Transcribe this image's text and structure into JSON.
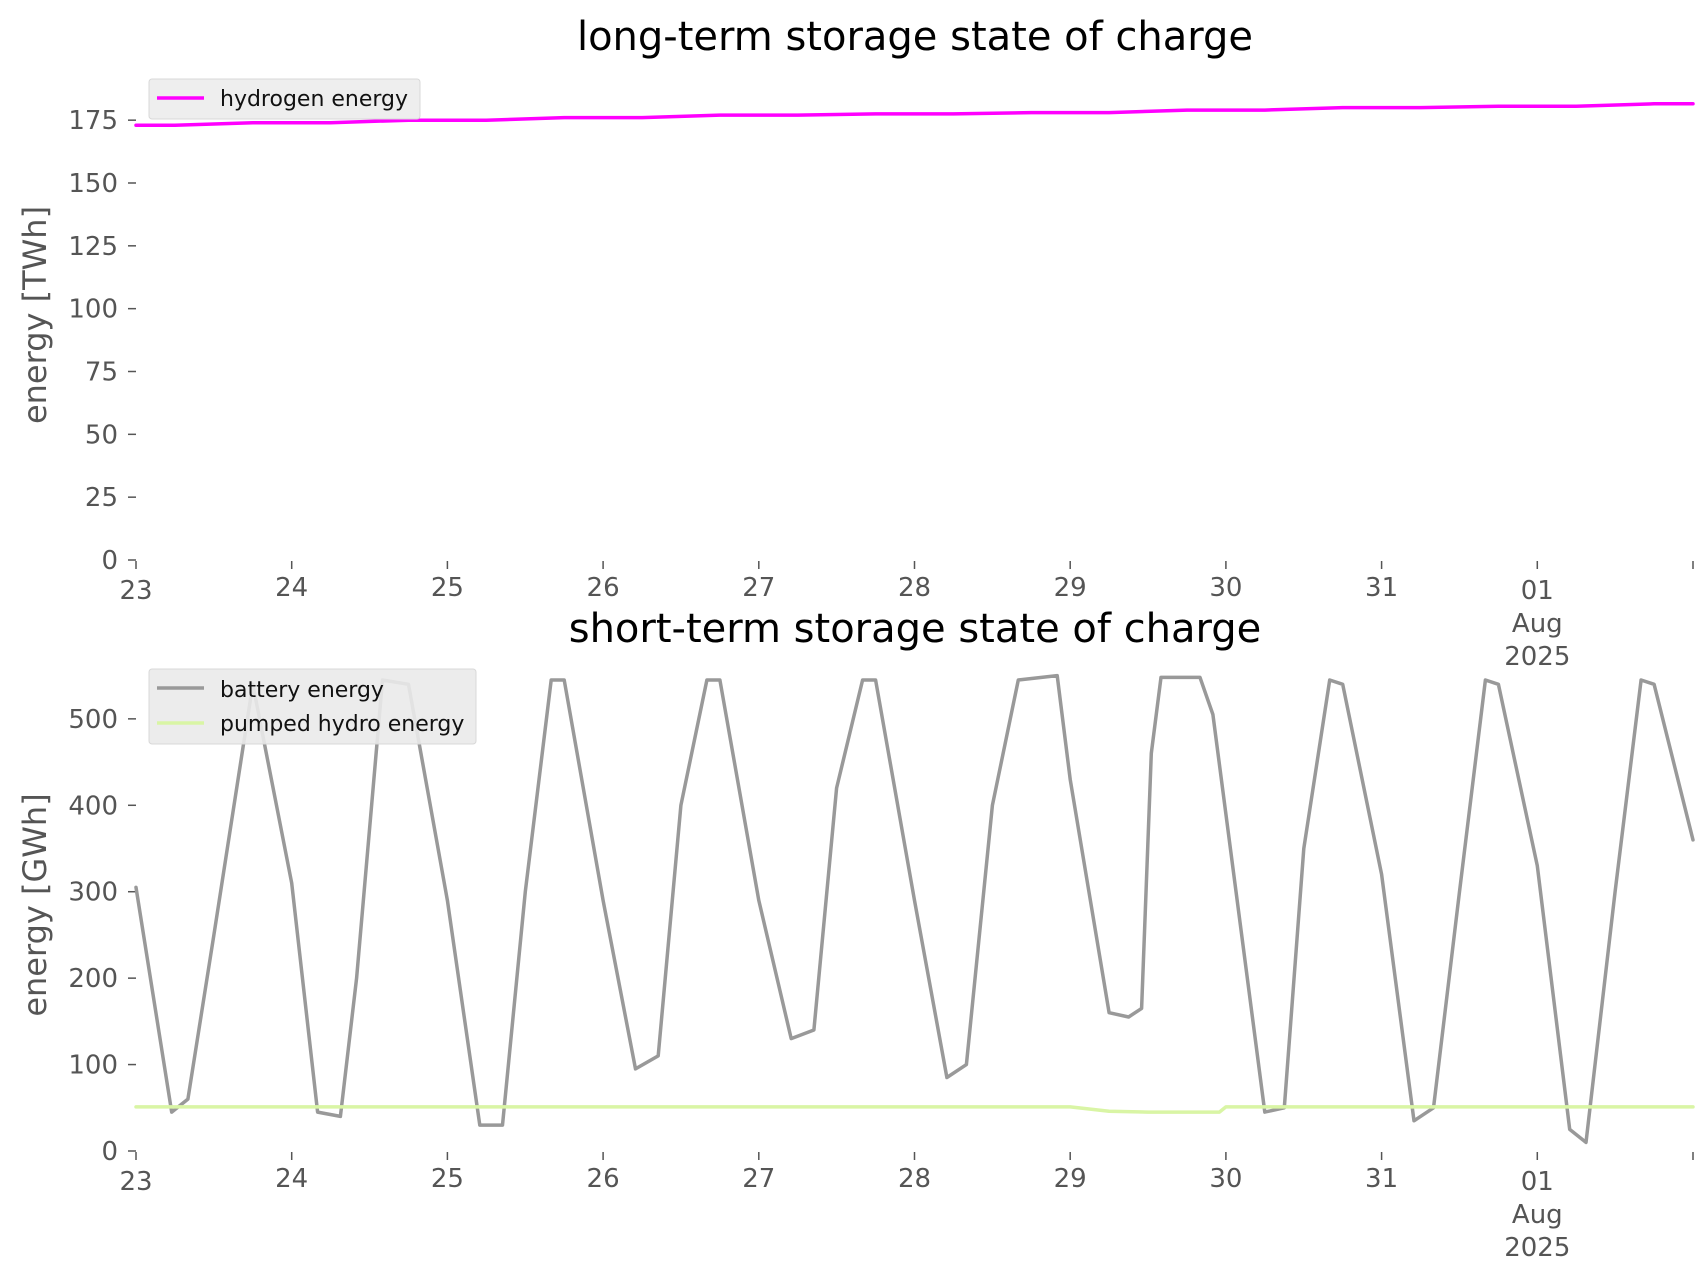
{
  "chart_data": [
    {
      "type": "line",
      "title": "long-term storage state of charge",
      "ylabel": "energy [TWh]",
      "ylim": [
        0,
        187
      ],
      "yticks": [
        "0",
        "25",
        "50",
        "75",
        "100",
        "125",
        "150",
        "175"
      ],
      "xlim": [
        "2025-07-23",
        "2025-08-02"
      ],
      "x_tick_labels": [
        "23",
        "24",
        "25",
        "26",
        "27",
        "28",
        "29",
        "30",
        "31",
        "01"
      ],
      "x_tick_extra": [
        "Aug",
        "2025"
      ],
      "grid": false,
      "legend_position": "top-left",
      "series": [
        {
          "name": "hydrogen energy",
          "color": "#ff00ff",
          "x": [
            "2025-07-23T00:00",
            "2025-07-23T06:00",
            "2025-07-23T18:00",
            "2025-07-24T06:00",
            "2025-07-24T18:00",
            "2025-07-25T06:00",
            "2025-07-25T18:00",
            "2025-07-26T06:00",
            "2025-07-26T18:00",
            "2025-07-27T06:00",
            "2025-07-27T18:00",
            "2025-07-28T06:00",
            "2025-07-28T18:00",
            "2025-07-29T06:00",
            "2025-07-29T18:00",
            "2025-07-30T06:00",
            "2025-07-30T18:00",
            "2025-07-31T06:00",
            "2025-07-31T18:00",
            "2025-08-01T06:00",
            "2025-08-01T18:00",
            "2025-08-02T00:00"
          ],
          "values": [
            173,
            173,
            174,
            174,
            175,
            175,
            176,
            176,
            177,
            177,
            177.5,
            177.5,
            178,
            178,
            179,
            179,
            180,
            180,
            180.5,
            180.5,
            181.5,
            181.5
          ]
        }
      ]
    },
    {
      "type": "line",
      "title": "short-term storage state of charge",
      "ylabel": "energy [GWh]",
      "ylim": [
        0,
        560
      ],
      "yticks": [
        "0",
        "100",
        "200",
        "300",
        "400",
        "500"
      ],
      "xlim": [
        "2025-07-23",
        "2025-08-02"
      ],
      "x_tick_labels": [
        "23",
        "24",
        "25",
        "26",
        "27",
        "28",
        "29",
        "30",
        "31",
        "01"
      ],
      "x_tick_extra": [
        "Aug",
        "2025"
      ],
      "grid": false,
      "legend_position": "top-left",
      "series": [
        {
          "name": "battery energy",
          "color": "#999999",
          "x": [
            "2025-07-23T00:00",
            "2025-07-23T05:30",
            "2025-07-23T08:00",
            "2025-07-23T12:00",
            "2025-07-23T18:00",
            "2025-07-24T00:00",
            "2025-07-24T04:00",
            "2025-07-24T07:30",
            "2025-07-24T10:00",
            "2025-07-24T14:00",
            "2025-07-24T18:00",
            "2025-07-25T00:00",
            "2025-07-25T05:00",
            "2025-07-25T08:30",
            "2025-07-25T12:00",
            "2025-07-25T16:00",
            "2025-07-25T18:00",
            "2025-07-26T00:00",
            "2025-07-26T05:00",
            "2025-07-26T08:30",
            "2025-07-26T12:00",
            "2025-07-26T16:00",
            "2025-07-26T18:00",
            "2025-07-27T00:00",
            "2025-07-27T05:00",
            "2025-07-27T08:30",
            "2025-07-27T12:00",
            "2025-07-27T16:00",
            "2025-07-27T18:00",
            "2025-07-28T00:00",
            "2025-07-28T05:00",
            "2025-07-28T08:00",
            "2025-07-28T12:00",
            "2025-07-28T16:00",
            "2025-07-28T22:00",
            "2025-07-29T00:00",
            "2025-07-29T06:00",
            "2025-07-29T09:00",
            "2025-07-29T11:00",
            "2025-07-29T12:30",
            "2025-07-29T14:00",
            "2025-07-29T18:00",
            "2025-07-29T20:00",
            "2025-07-29T22:00",
            "2025-07-30T06:00",
            "2025-07-30T09:00",
            "2025-07-30T12:00",
            "2025-07-30T16:00",
            "2025-07-30T18:00",
            "2025-07-31T00:00",
            "2025-07-31T05:00",
            "2025-07-31T08:00",
            "2025-07-31T12:00",
            "2025-07-31T16:00",
            "2025-07-31T18:00",
            "2025-08-01T00:00",
            "2025-08-01T05:00",
            "2025-08-01T07:30",
            "2025-08-01T12:00",
            "2025-08-01T16:00",
            "2025-08-01T18:00",
            "2025-08-02T00:00"
          ],
          "values": [
            305,
            45,
            60,
            250,
            540,
            310,
            45,
            40,
            200,
            545,
            540,
            290,
            30,
            30,
            300,
            545,
            545,
            290,
            95,
            110,
            400,
            545,
            545,
            290,
            130,
            140,
            420,
            545,
            545,
            290,
            85,
            100,
            400,
            545,
            550,
            430,
            160,
            155,
            165,
            460,
            548,
            548,
            548,
            505,
            45,
            50,
            350,
            545,
            540,
            320,
            35,
            50,
            300,
            545,
            540,
            330,
            25,
            10,
            300,
            545,
            540,
            360
          ]
        },
        {
          "name": "pumped hydro energy",
          "color": "#d9f5a5",
          "x": [
            "2025-07-23T00:00",
            "2025-07-29T00:00",
            "2025-07-29T06:00",
            "2025-07-29T12:00",
            "2025-07-29T23:00",
            "2025-07-30T00:00",
            "2025-08-02T00:00"
          ],
          "values": [
            51,
            51,
            46,
            45,
            45,
            51,
            51
          ]
        }
      ]
    }
  ]
}
